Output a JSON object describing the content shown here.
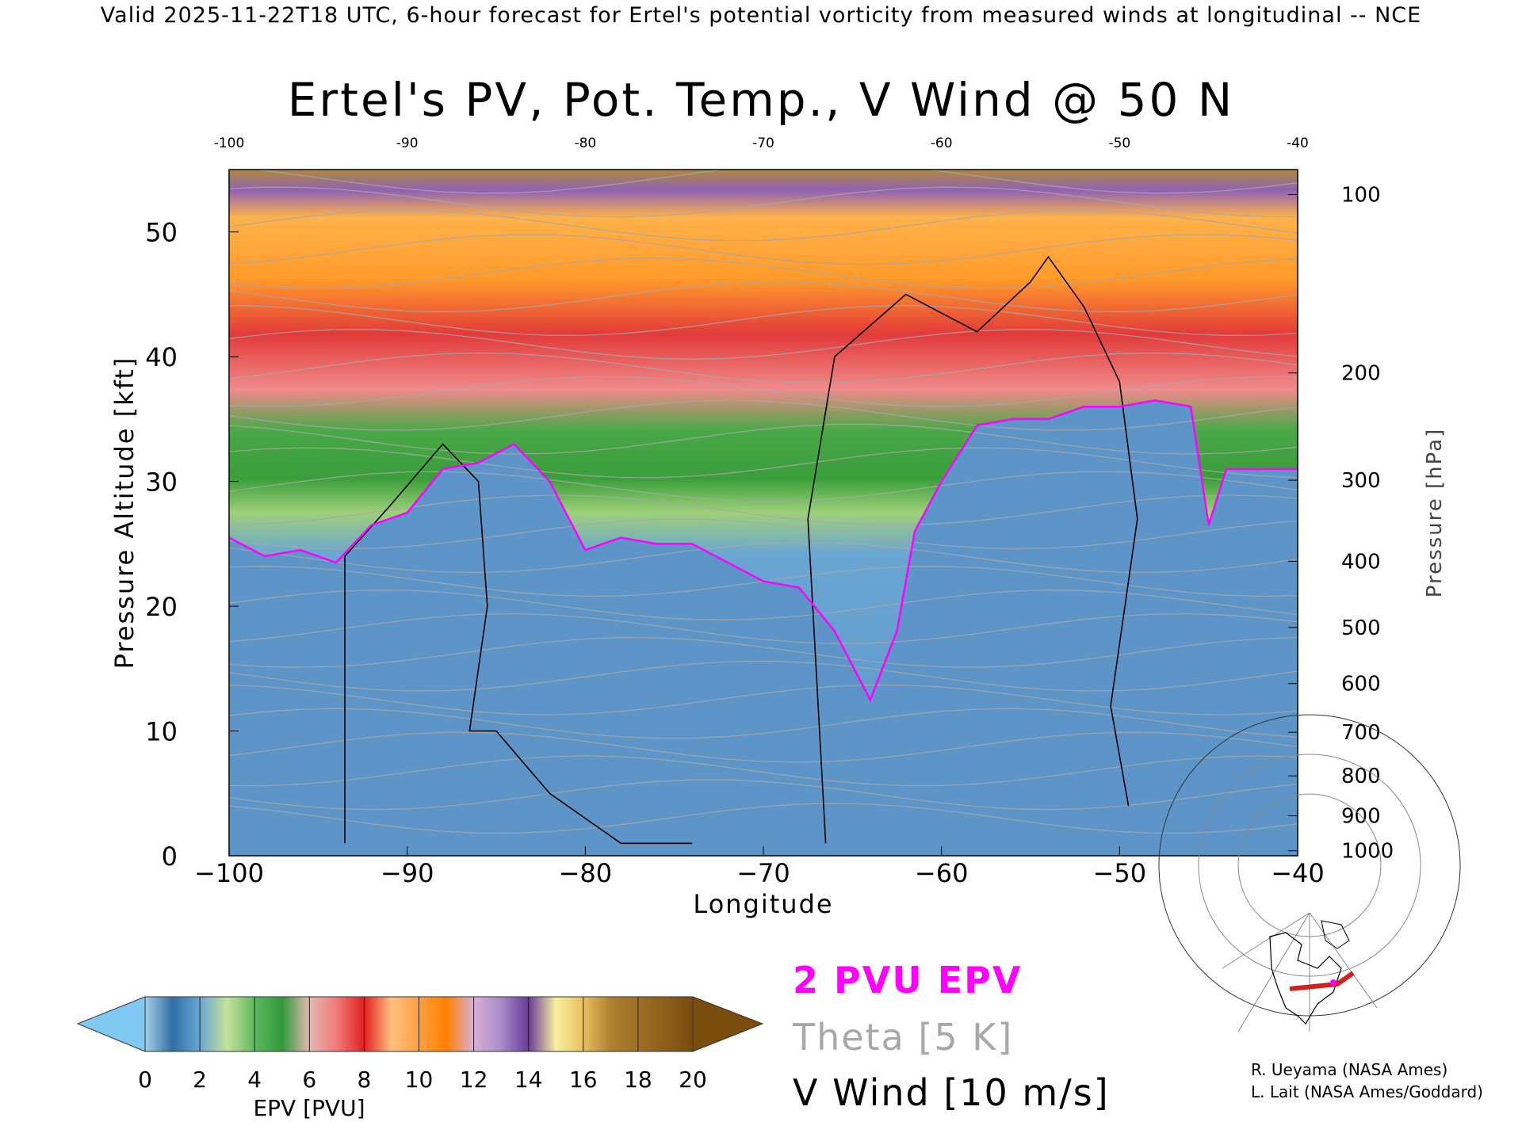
{
  "header": {
    "valid_line": "Valid 2025-11-22T18 UTC, 6-hour forecast for Ertel's potential vorticity from measured winds at longitudinal -- NCE"
  },
  "chart_data": {
    "type": "heatmap",
    "title": "Ertel's PV, Pot. Temp., V Wind @ 50 N",
    "xlabel": "Longitude",
    "ylabel_left": "Pressure Altitude [kft]",
    "ylabel_right": "Pressure [hPa]",
    "xlim": [
      -100,
      -40
    ],
    "ylim": [
      0,
      55
    ],
    "x_ticks": [
      -100,
      -90,
      -80,
      -70,
      -60,
      -50,
      -40
    ],
    "x_tick_labels": [
      "−100",
      "−90",
      "−80",
      "−70",
      "−60",
      "−50",
      "−40"
    ],
    "x_top_tick_labels": [
      "-100",
      "-90",
      "-80",
      "-70",
      "-60",
      "-50",
      "-40"
    ],
    "y_ticks": [
      0,
      10,
      20,
      30,
      40,
      50
    ],
    "y_tick_labels": [
      "0",
      "10",
      "20",
      "30",
      "40",
      "50"
    ],
    "pressure_ticks": [
      {
        "hpa": 100,
        "label": "100",
        "kft": 53.0
      },
      {
        "hpa": 200,
        "label": "200",
        "kft": 38.7
      },
      {
        "hpa": 300,
        "label": "300",
        "kft": 30.1
      },
      {
        "hpa": 400,
        "label": "400",
        "kft": 23.6
      },
      {
        "hpa": 500,
        "label": "500",
        "kft": 18.3
      },
      {
        "hpa": 600,
        "label": "600",
        "kft": 13.8
      },
      {
        "hpa": 700,
        "label": "700",
        "kft": 9.9
      },
      {
        "hpa": 800,
        "label": "800",
        "kft": 6.4
      },
      {
        "hpa": 900,
        "label": "900",
        "kft": 3.2
      },
      {
        "hpa": 1000,
        "label": "1000",
        "kft": 0.4
      }
    ],
    "tropopause_2pvu_kft": [
      {
        "lon": -100,
        "kft": 25.5
      },
      {
        "lon": -98,
        "kft": 24
      },
      {
        "lon": -96,
        "kft": 24.5
      },
      {
        "lon": -94,
        "kft": 23.5
      },
      {
        "lon": -92,
        "kft": 26.5
      },
      {
        "lon": -90,
        "kft": 27.5
      },
      {
        "lon": -88,
        "kft": 31
      },
      {
        "lon": -86,
        "kft": 31.5
      },
      {
        "lon": -84,
        "kft": 33
      },
      {
        "lon": -82,
        "kft": 30
      },
      {
        "lon": -80,
        "kft": 24.5
      },
      {
        "lon": -78,
        "kft": 25.5
      },
      {
        "lon": -76,
        "kft": 25
      },
      {
        "lon": -74,
        "kft": 25
      },
      {
        "lon": -72,
        "kft": 23.5
      },
      {
        "lon": -70,
        "kft": 22
      },
      {
        "lon": -68,
        "kft": 21.5
      },
      {
        "lon": -66,
        "kft": 18
      },
      {
        "lon": -64,
        "kft": 12.5
      },
      {
        "lon": -62.5,
        "kft": 18
      },
      {
        "lon": -61.5,
        "kft": 26
      },
      {
        "lon": -60,
        "kft": 30
      },
      {
        "lon": -58,
        "kft": 34.5
      },
      {
        "lon": -56,
        "kft": 35
      },
      {
        "lon": -54,
        "kft": 35
      },
      {
        "lon": -52,
        "kft": 36
      },
      {
        "lon": -50,
        "kft": 36
      },
      {
        "lon": -48,
        "kft": 36.5
      },
      {
        "lon": -46,
        "kft": 36
      },
      {
        "lon": -45,
        "kft": 26.5
      },
      {
        "lon": -44,
        "kft": 31
      },
      {
        "lon": -40,
        "kft": 31
      }
    ],
    "v_wind_zero_contours_kft": [
      [
        {
          "lon": -93.5,
          "kft": 1
        },
        {
          "lon": -93.5,
          "kft": 24
        },
        {
          "lon": -91,
          "kft": 28
        },
        {
          "lon": -88,
          "kft": 33
        },
        {
          "lon": -86,
          "kft": 30
        },
        {
          "lon": -85.5,
          "kft": 20
        },
        {
          "lon": -86.5,
          "kft": 10
        },
        {
          "lon": -85,
          "kft": 10
        },
        {
          "lon": -82,
          "kft": 5
        },
        {
          "lon": -78,
          "kft": 1
        },
        {
          "lon": -74,
          "kft": 1
        }
      ],
      [
        {
          "lon": -66.5,
          "kft": 1
        },
        {
          "lon": -67.5,
          "kft": 27
        },
        {
          "lon": -66,
          "kft": 40
        },
        {
          "lon": -62,
          "kft": 45
        },
        {
          "lon": -58,
          "kft": 42
        },
        {
          "lon": -55,
          "kft": 46
        },
        {
          "lon": -54,
          "kft": 48
        },
        {
          "lon": -52,
          "kft": 44
        },
        {
          "lon": -50,
          "kft": 38
        },
        {
          "lon": -49,
          "kft": 27
        },
        {
          "lon": -50.5,
          "kft": 12
        },
        {
          "lon": -49.5,
          "kft": 4
        }
      ]
    ],
    "theta_contour_interval_k": 5,
    "v_wind_contour_interval_ms": 10,
    "colorbar": {
      "label": "EPV [PVU]",
      "ticks": [
        "0",
        "2",
        "4",
        "6",
        "8",
        "10",
        "12",
        "14",
        "16",
        "18",
        "20"
      ],
      "min": 0,
      "max": 20,
      "step": 2,
      "extend": "both",
      "low_color": "#7fc9f2",
      "high_color": "#7a4c0e"
    }
  },
  "legend": {
    "epv": "2 PVU EPV",
    "theta": "Theta [5 K]",
    "v_wind": "V Wind [10 m/s]"
  },
  "colors": {
    "epv_line": "#ff00ff",
    "theta_line": "#a8a8a8",
    "v_wind_line": "#000000",
    "trop_blue": "#5b92c6",
    "green": "#3a9e3a",
    "red": "#e23a3a",
    "orange": "#ff9a2a",
    "purple": "#7b48a0"
  },
  "credits": {
    "line1": "R. Ueyama (NASA Ames)",
    "line2": "L. Lait (NASA Ames/Goddard)"
  }
}
